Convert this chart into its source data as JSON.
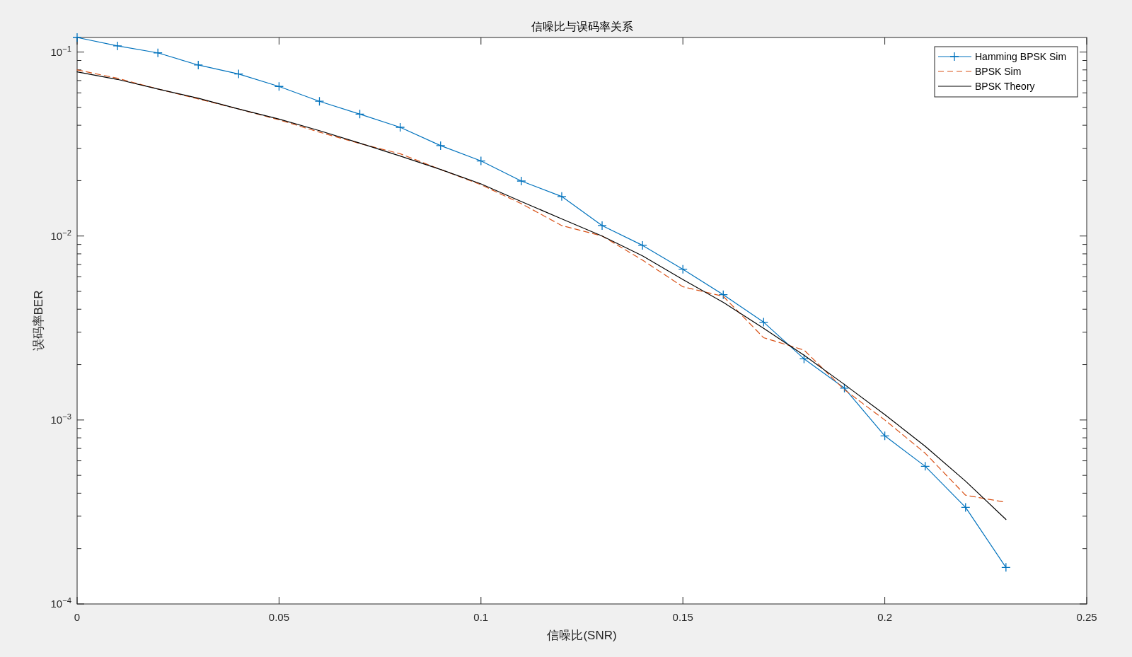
{
  "chart_data": {
    "type": "line",
    "title": "信噪比与误码率关系",
    "xlabel": "信噪比(SNR)",
    "ylabel": "误码率BER",
    "x": [
      0,
      0.01,
      0.02,
      0.03,
      0.04,
      0.05,
      0.06,
      0.07,
      0.08,
      0.09,
      0.1,
      0.11,
      0.12,
      0.13,
      0.14,
      0.15,
      0.16,
      0.17,
      0.18,
      0.19,
      0.2,
      0.21,
      0.22,
      0.23
    ],
    "series": [
      {
        "name": "Hamming BPSK Sim",
        "color": "#0072bd",
        "marker": "cross",
        "line_style": "solid",
        "values": [
          0.12,
          0.108,
          0.099,
          0.085,
          0.076,
          0.065,
          0.054,
          0.046,
          0.039,
          0.031,
          0.0256,
          0.0199,
          0.0164,
          0.0114,
          0.0089,
          0.0066,
          0.0048,
          0.0034,
          0.00215,
          0.00149,
          0.00082,
          0.00056,
          0.000335,
          0.000158
        ]
      },
      {
        "name": "BPSK Sim",
        "color": "#d95319",
        "marker": "none",
        "line_style": "dashed",
        "values": [
          0.08,
          0.072,
          0.063,
          0.0556,
          0.049,
          0.0428,
          0.0367,
          0.0318,
          0.028,
          0.023,
          0.019,
          0.015,
          0.0114,
          0.01,
          0.0074,
          0.0053,
          0.0047,
          0.0028,
          0.0024,
          0.00146,
          0.001,
          0.00066,
          0.00039,
          0.000357
        ]
      },
      {
        "name": "BPSK Theory",
        "color": "#000000",
        "marker": "none",
        "line_style": "solid",
        "values": [
          0.078,
          0.071,
          0.063,
          0.0561,
          0.049,
          0.0432,
          0.0374,
          0.032,
          0.0272,
          0.023,
          0.0192,
          0.0154,
          0.0124,
          0.01,
          0.0078,
          0.0058,
          0.00436,
          0.00315,
          0.00225,
          0.00156,
          0.00107,
          0.00072,
          0.000465,
          0.000288
        ]
      }
    ],
    "log": "y",
    "grid": false,
    "legend": "top right",
    "xlim": [
      0,
      0.25
    ],
    "xticks": [
      0,
      0.05,
      0.1,
      0.15,
      0.2,
      0.25
    ],
    "ylim": [
      0.0001,
      0.12
    ],
    "yticks": [
      {
        "value": 0.0001,
        "label": "10$^{−4}$"
      },
      {
        "value": 0.0002,
        "label": null
      },
      {
        "value": 0.0003,
        "label": null
      },
      {
        "value": 0.0004,
        "label": null
      },
      {
        "value": 0.0005,
        "label": null
      },
      {
        "value": 0.0006,
        "label": null
      },
      {
        "value": 0.0007,
        "label": null
      },
      {
        "value": 0.0008,
        "label": null
      },
      {
        "value": 0.0009,
        "label": null
      },
      {
        "value": 0.001,
        "label": "10$^{−3}$"
      },
      {
        "value": 0.002,
        "label": null
      },
      {
        "value": 0.003,
        "label": null
      },
      {
        "value": 0.004,
        "label": null
      },
      {
        "value": 0.005,
        "label": null
      },
      {
        "value": 0.006,
        "label": null
      },
      {
        "value": 0.007,
        "label": null
      },
      {
        "value": 0.008,
        "label": null
      },
      {
        "value": 0.009,
        "label": null
      },
      {
        "value": 0.01,
        "label": "10$^{−2}$"
      },
      {
        "value": 0.02,
        "label": null
      },
      {
        "value": 0.03,
        "label": null
      },
      {
        "value": 0.04,
        "label": null
      },
      {
        "value": 0.05,
        "label": null
      },
      {
        "value": 0.06,
        "label": null
      },
      {
        "value": 0.07,
        "label": null
      },
      {
        "value": 0.08,
        "label": null
      },
      {
        "value": 0.09,
        "label": null
      },
      {
        "value": 0.1,
        "label": "10$^{−1}$"
      }
    ]
  }
}
